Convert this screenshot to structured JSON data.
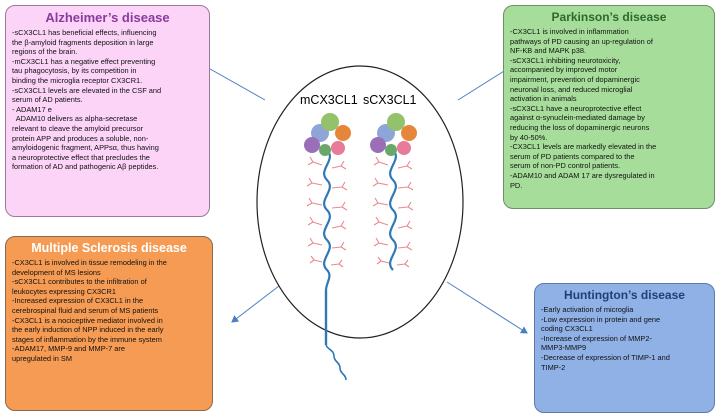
{
  "alzheimer": {
    "title": "Alzheimer’s disease",
    "lines": [
      "-sCX3CL1 has beneficial effects, influencing",
      "the β-amyloid fragments deposition in large",
      "regions of the brain.",
      "-mCX3CL1 has a negative effect preventing",
      "tau phagocytosis, by its competition in",
      "binding the microglia receptor CX3CR1.",
      "-sCX3CL1 levels are elevated in the CSF and",
      "serum of AD patients.",
      "- ADAM17 e",
      "  ADAM10 delivers as alpha-secretase",
      "relevant to cleave the amyloid precursor",
      "protein APP and produces a soluble, non-",
      "amyloidogenic fragment, APPsα, thus having",
      "a neuroprotective effect that precludes the",
      "formation of AD and pathogenic Aβ peptides."
    ]
  },
  "parkinson": {
    "title": "Parkinson’s disease",
    "lines": [
      "-CX3CL1 is involved in inflammation",
      "pathways of PD causing an up-regulation of",
      "NF-KB and MAPK p38.",
      "-sCX3CL1 inhibiting  neurotoxicity,",
      "accompanied by improved motor",
      "impairment, prevention of dopaminergic",
      "neuronal loss, and reduced microglial",
      "activation in animals",
      "-sCX3CL1 have a neuroprotective effect",
      "against α-synuclein-mediated damage by",
      "reducing the loss of dopaminergic neurons",
      "by 40-50%.",
      "-CX3CL1 levels are markedly elevated in the",
      "serum of PD patients compared to the",
      "serum of non-PD control patients.",
      "-ADAM10 and ADAM 17 are dysregulated in",
      "PD."
    ]
  },
  "ms": {
    "title": "Multiple Sclerosis disease",
    "lines": [
      "-CX3CL1 is involved in tissue remodeling in the",
      "development of MS lesions",
      "-sCX3CL1 contributes to the infiltration of",
      "leukocytes expressing CX3CR1",
      "-Increased expression of CX3CL1 in the",
      "cerebrospinal fluid and serum of MS patients",
      "-CX3CL1 is a nociceptive mediator involved in",
      "the early induction of NPP induced in the early",
      "stages of inflammation by the immune system",
      "-ADAM17, MMP-9 and MMP-7 are",
      "upregulated in SM"
    ]
  },
  "huntington": {
    "title": "Huntington’s disease",
    "lines": [
      "-Early activation of microglia",
      "-Low expression in protein and gene",
      "coding CX3CL1",
      "-Increase of expression of MMP2-",
      "MMP3-MMP9",
      "-Decrease of expression of TIMP-1 and",
      "TIMP-2"
    ]
  },
  "center": {
    "m_label": "mCX3CL1",
    "s_label": "sCX3CL1"
  },
  "colors": {
    "arrow": "#4a7fc4",
    "alz_fill": "#fbd4f7",
    "park_fill": "#a7dd9b",
    "ms_fill": "#f59b53",
    "hunt_fill": "#8fb1e6",
    "helix": "#2f79b7",
    "sugar": "#e88a90"
  }
}
